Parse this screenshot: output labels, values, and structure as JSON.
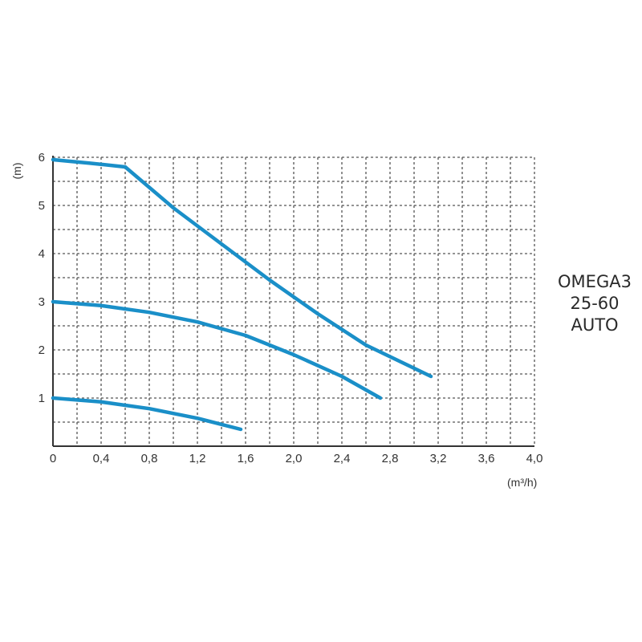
{
  "chart_data": {
    "type": "line",
    "title": "",
    "xlabel": "(m³/h)",
    "ylabel": "(m)",
    "x_ticks": [
      "0",
      "0,4",
      "0,8",
      "1,2",
      "1,6",
      "2,0",
      "2,4",
      "2,8",
      "3,2",
      "3,6",
      "4,0"
    ],
    "y_ticks": [
      "1",
      "2",
      "3",
      "4",
      "5",
      "6"
    ],
    "xlim": [
      0,
      4.0
    ],
    "ylim": [
      0,
      6
    ],
    "grid": true,
    "grid_style": "dashed",
    "color": "#1a8fc8",
    "series": [
      {
        "x": [
          0,
          0.3,
          0.6,
          1.0,
          1.4,
          1.8,
          2.2,
          2.6,
          3.14
        ],
        "y": [
          5.95,
          5.88,
          5.8,
          4.95,
          4.2,
          3.45,
          2.75,
          2.1,
          1.45
        ]
      },
      {
        "x": [
          0,
          0.4,
          0.8,
          1.2,
          1.6,
          2.0,
          2.4,
          2.72
        ],
        "y": [
          3.0,
          2.92,
          2.78,
          2.58,
          2.3,
          1.9,
          1.45,
          1.0
        ]
      },
      {
        "x": [
          0,
          0.4,
          0.8,
          1.2,
          1.56
        ],
        "y": [
          1.0,
          0.92,
          0.78,
          0.58,
          0.35
        ]
      }
    ],
    "annotation": [
      "OMEGA3",
      "25-60",
      "AUTO"
    ]
  }
}
